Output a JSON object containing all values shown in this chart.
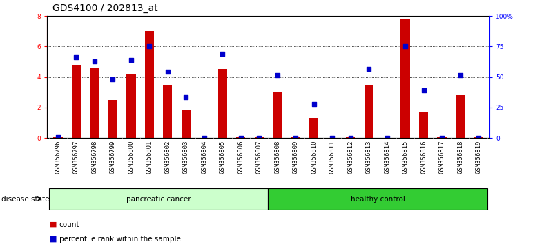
{
  "title": "GDS4100 / 202813_at",
  "samples": [
    "GSM356796",
    "GSM356797",
    "GSM356798",
    "GSM356799",
    "GSM356800",
    "GSM356801",
    "GSM356802",
    "GSM356803",
    "GSM356804",
    "GSM356805",
    "GSM356806",
    "GSM356807",
    "GSM356808",
    "GSM356809",
    "GSM356810",
    "GSM356811",
    "GSM356812",
    "GSM356813",
    "GSM356814",
    "GSM356815",
    "GSM356816",
    "GSM356817",
    "GSM356818",
    "GSM356819"
  ],
  "count_values": [
    0.05,
    4.8,
    4.6,
    2.5,
    4.2,
    7.0,
    3.5,
    1.85,
    0.0,
    4.5,
    0.05,
    0.05,
    3.0,
    0.05,
    1.3,
    0.0,
    0.05,
    3.5,
    0.0,
    7.8,
    1.7,
    0.05,
    2.8,
    0.05
  ],
  "percentile_values": [
    0.05,
    5.3,
    5.0,
    3.85,
    5.1,
    6.0,
    4.35,
    2.65,
    0.0,
    5.5,
    0.0,
    0.0,
    4.1,
    0.0,
    2.2,
    0.0,
    0.0,
    4.5,
    0.0,
    6.0,
    3.1,
    0.0,
    4.1,
    0.0
  ],
  "group_labels": [
    "pancreatic cancer",
    "healthy control"
  ],
  "panc_count": 12,
  "healthy_count": 12,
  "group_color_panc": "#ccffcc",
  "group_color_healthy": "#33cc33",
  "bar_color": "#CC0000",
  "dot_color": "#0000CC",
  "ylim": [
    0,
    8
  ],
  "yticks_left": [
    0,
    2,
    4,
    6,
    8
  ],
  "ytick_labels_left": [
    "0",
    "2",
    "4",
    "6",
    "8"
  ],
  "yticks_right_vals": [
    0,
    2,
    4,
    6,
    8
  ],
  "ytick_labels_right": [
    "0",
    "25",
    "50",
    "75",
    "100%"
  ],
  "dotted_lines": [
    2,
    4,
    6
  ],
  "disease_state_label": "disease state",
  "legend_count_label": "count",
  "legend_pct_label": "percentile rank within the sample",
  "background_color": "#ffffff",
  "title_fontsize": 10,
  "tick_fontsize": 6.5,
  "label_fontsize": 7.5,
  "bar_width": 0.5
}
